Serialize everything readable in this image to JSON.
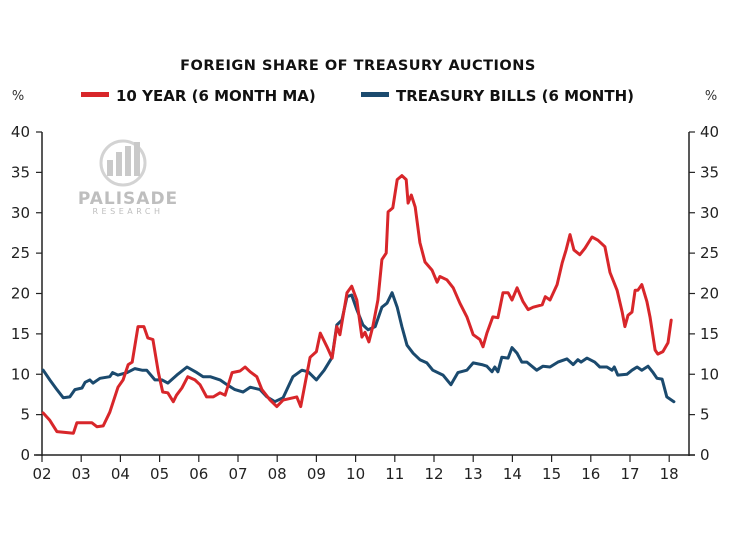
{
  "chart_data": {
    "type": "line",
    "title": "FOREIGN SHARE OF TREASURY AUCTIONS",
    "ylabel_left": "%",
    "ylabel_right": "%",
    "watermark": {
      "name": "PALISADE",
      "sub": "RESEARCH"
    },
    "xlim": [
      2002,
      2018.5
    ],
    "ylim": [
      0,
      40
    ],
    "yticks": [
      0,
      5,
      10,
      15,
      20,
      25,
      30,
      35,
      40
    ],
    "xticks": [
      {
        "value": 2002,
        "label": "02"
      },
      {
        "value": 2003,
        "label": "03"
      },
      {
        "value": 2004,
        "label": "04"
      },
      {
        "value": 2005,
        "label": "05"
      },
      {
        "value": 2006,
        "label": "06"
      },
      {
        "value": 2007,
        "label": "07"
      },
      {
        "value": 2008,
        "label": "08"
      },
      {
        "value": 2009,
        "label": "09"
      },
      {
        "value": 2010,
        "label": "10"
      },
      {
        "value": 2011,
        "label": "11"
      },
      {
        "value": 2012,
        "label": "12"
      },
      {
        "value": 2013,
        "label": "13"
      },
      {
        "value": 2014,
        "label": "14"
      },
      {
        "value": 2015,
        "label": "15"
      },
      {
        "value": 2016,
        "label": "16"
      },
      {
        "value": 2017,
        "label": "17"
      },
      {
        "value": 2018,
        "label": "18"
      }
    ],
    "grid": false,
    "legend_position": "top",
    "series": [
      {
        "name": "10 YEAR (6 MONTH MA)",
        "color": "#d8262a",
        "points": [
          [
            2002.03,
            5.2
          ],
          [
            2002.2,
            4.3
          ],
          [
            2002.38,
            2.9
          ],
          [
            2002.58,
            2.8
          ],
          [
            2002.8,
            2.7
          ],
          [
            2002.89,
            4.0
          ],
          [
            2003.27,
            4.0
          ],
          [
            2003.4,
            3.5
          ],
          [
            2003.56,
            3.6
          ],
          [
            2003.73,
            5.3
          ],
          [
            2003.94,
            8.4
          ],
          [
            2004.07,
            9.3
          ],
          [
            2004.2,
            11.2
          ],
          [
            2004.3,
            11.5
          ],
          [
            2004.45,
            15.9
          ],
          [
            2004.6,
            15.9
          ],
          [
            2004.7,
            14.5
          ],
          [
            2004.83,
            14.3
          ],
          [
            2004.97,
            10.2
          ],
          [
            2005.08,
            7.8
          ],
          [
            2005.21,
            7.7
          ],
          [
            2005.35,
            6.6
          ],
          [
            2005.43,
            7.4
          ],
          [
            2005.57,
            8.3
          ],
          [
            2005.72,
            9.7
          ],
          [
            2005.9,
            9.3
          ],
          [
            2006.03,
            8.7
          ],
          [
            2006.2,
            7.2
          ],
          [
            2006.37,
            7.2
          ],
          [
            2006.54,
            7.7
          ],
          [
            2006.67,
            7.4
          ],
          [
            2006.85,
            10.2
          ],
          [
            2007.05,
            10.4
          ],
          [
            2007.18,
            10.9
          ],
          [
            2007.31,
            10.3
          ],
          [
            2007.48,
            9.7
          ],
          [
            2007.61,
            8.1
          ],
          [
            2007.82,
            6.8
          ],
          [
            2007.99,
            6.0
          ],
          [
            2008.15,
            6.8
          ],
          [
            2008.5,
            7.2
          ],
          [
            2008.6,
            6.0
          ],
          [
            2008.84,
            12.1
          ],
          [
            2009.0,
            12.8
          ],
          [
            2009.1,
            15.1
          ],
          [
            2009.27,
            13.4
          ],
          [
            2009.4,
            12.0
          ],
          [
            2009.52,
            15.9
          ],
          [
            2009.6,
            14.9
          ],
          [
            2009.78,
            20.1
          ],
          [
            2009.9,
            20.9
          ],
          [
            2010.03,
            19.2
          ],
          [
            2010.16,
            14.6
          ],
          [
            2010.24,
            15.2
          ],
          [
            2010.34,
            14.0
          ],
          [
            2010.44,
            15.9
          ],
          [
            2010.57,
            19.2
          ],
          [
            2010.67,
            24.2
          ],
          [
            2010.78,
            25.0
          ],
          [
            2010.83,
            30.1
          ],
          [
            2010.95,
            30.6
          ],
          [
            2011.06,
            34.1
          ],
          [
            2011.18,
            34.6
          ],
          [
            2011.29,
            34.1
          ],
          [
            2011.34,
            31.2
          ],
          [
            2011.42,
            32.2
          ],
          [
            2011.52,
            30.7
          ],
          [
            2011.64,
            26.3
          ],
          [
            2011.77,
            23.9
          ],
          [
            2011.95,
            22.9
          ],
          [
            2012.08,
            21.4
          ],
          [
            2012.15,
            22.1
          ],
          [
            2012.33,
            21.7
          ],
          [
            2012.49,
            20.7
          ],
          [
            2012.66,
            18.8
          ],
          [
            2012.84,
            17.1
          ],
          [
            2013.0,
            14.9
          ],
          [
            2013.17,
            14.3
          ],
          [
            2013.25,
            13.4
          ],
          [
            2013.35,
            15.1
          ],
          [
            2013.5,
            17.1
          ],
          [
            2013.63,
            17.0
          ],
          [
            2013.76,
            20.1
          ],
          [
            2013.89,
            20.1
          ],
          [
            2013.99,
            19.2
          ],
          [
            2014.12,
            20.7
          ],
          [
            2014.27,
            19.0
          ],
          [
            2014.4,
            18.0
          ],
          [
            2014.53,
            18.3
          ],
          [
            2014.76,
            18.6
          ],
          [
            2014.84,
            19.6
          ],
          [
            2014.96,
            19.2
          ],
          [
            2015.14,
            21.1
          ],
          [
            2015.27,
            23.8
          ],
          [
            2015.37,
            25.4
          ],
          [
            2015.47,
            27.3
          ],
          [
            2015.57,
            25.4
          ],
          [
            2015.72,
            24.8
          ],
          [
            2015.85,
            25.6
          ],
          [
            2016.03,
            27.0
          ],
          [
            2016.18,
            26.6
          ],
          [
            2016.36,
            25.8
          ],
          [
            2016.49,
            22.6
          ],
          [
            2016.67,
            20.4
          ],
          [
            2016.8,
            17.7
          ],
          [
            2016.87,
            15.9
          ],
          [
            2016.95,
            17.3
          ],
          [
            2017.05,
            17.7
          ],
          [
            2017.13,
            20.4
          ],
          [
            2017.2,
            20.4
          ],
          [
            2017.3,
            21.1
          ],
          [
            2017.43,
            19.0
          ],
          [
            2017.51,
            17.1
          ],
          [
            2017.56,
            15.5
          ],
          [
            2017.64,
            13.0
          ],
          [
            2017.71,
            12.5
          ],
          [
            2017.84,
            12.8
          ],
          [
            2017.97,
            13.9
          ],
          [
            2018.05,
            16.7
          ]
        ]
      },
      {
        "name": "TREASURY BILLS (6 MONTH)",
        "color": "#1b4a6e",
        "points": [
          [
            2002.03,
            10.5
          ],
          [
            2002.2,
            9.3
          ],
          [
            2002.38,
            8.1
          ],
          [
            2002.54,
            7.1
          ],
          [
            2002.71,
            7.2
          ],
          [
            2002.84,
            8.1
          ],
          [
            2003.02,
            8.3
          ],
          [
            2003.1,
            9.0
          ],
          [
            2003.22,
            9.3
          ],
          [
            2003.3,
            8.9
          ],
          [
            2003.48,
            9.5
          ],
          [
            2003.73,
            9.7
          ],
          [
            2003.8,
            10.2
          ],
          [
            2003.94,
            9.9
          ],
          [
            2004.17,
            10.2
          ],
          [
            2004.37,
            10.7
          ],
          [
            2004.55,
            10.5
          ],
          [
            2004.67,
            10.5
          ],
          [
            2004.88,
            9.3
          ],
          [
            2005.06,
            9.3
          ],
          [
            2005.21,
            8.9
          ],
          [
            2005.44,
            9.9
          ],
          [
            2005.7,
            10.9
          ],
          [
            2005.95,
            10.2
          ],
          [
            2006.11,
            9.7
          ],
          [
            2006.29,
            9.7
          ],
          [
            2006.54,
            9.3
          ],
          [
            2006.72,
            8.7
          ],
          [
            2006.92,
            8.1
          ],
          [
            2007.13,
            7.8
          ],
          [
            2007.31,
            8.4
          ],
          [
            2007.56,
            8.1
          ],
          [
            2007.74,
            7.2
          ],
          [
            2007.94,
            6.6
          ],
          [
            2008.15,
            7.1
          ],
          [
            2008.4,
            9.7
          ],
          [
            2008.63,
            10.5
          ],
          [
            2008.79,
            10.3
          ],
          [
            2009.0,
            9.3
          ],
          [
            2009.2,
            10.5
          ],
          [
            2009.4,
            12.1
          ],
          [
            2009.52,
            16.1
          ],
          [
            2009.65,
            16.7
          ],
          [
            2009.78,
            19.6
          ],
          [
            2009.9,
            19.8
          ],
          [
            2010.03,
            18.0
          ],
          [
            2010.19,
            16.1
          ],
          [
            2010.32,
            15.5
          ],
          [
            2010.5,
            15.9
          ],
          [
            2010.67,
            18.3
          ],
          [
            2010.8,
            18.8
          ],
          [
            2010.93,
            20.1
          ],
          [
            2011.06,
            18.3
          ],
          [
            2011.18,
            15.9
          ],
          [
            2011.31,
            13.6
          ],
          [
            2011.47,
            12.6
          ],
          [
            2011.64,
            11.8
          ],
          [
            2011.82,
            11.4
          ],
          [
            2011.97,
            10.5
          ],
          [
            2012.23,
            9.9
          ],
          [
            2012.43,
            8.7
          ],
          [
            2012.61,
            10.2
          ],
          [
            2012.84,
            10.5
          ],
          [
            2013.0,
            11.4
          ],
          [
            2013.22,
            11.2
          ],
          [
            2013.35,
            11.0
          ],
          [
            2013.48,
            10.3
          ],
          [
            2013.55,
            10.9
          ],
          [
            2013.63,
            10.3
          ],
          [
            2013.73,
            12.1
          ],
          [
            2013.89,
            12.0
          ],
          [
            2013.99,
            13.3
          ],
          [
            2014.12,
            12.6
          ],
          [
            2014.24,
            11.5
          ],
          [
            2014.37,
            11.5
          ],
          [
            2014.62,
            10.5
          ],
          [
            2014.78,
            11.0
          ],
          [
            2014.96,
            10.9
          ],
          [
            2015.16,
            11.5
          ],
          [
            2015.39,
            11.9
          ],
          [
            2015.55,
            11.2
          ],
          [
            2015.67,
            11.8
          ],
          [
            2015.75,
            11.5
          ],
          [
            2015.9,
            12.0
          ],
          [
            2016.1,
            11.5
          ],
          [
            2016.23,
            10.9
          ],
          [
            2016.41,
            10.9
          ],
          [
            2016.54,
            10.5
          ],
          [
            2016.6,
            10.9
          ],
          [
            2016.69,
            9.9
          ],
          [
            2016.92,
            10.0
          ],
          [
            2017.05,
            10.5
          ],
          [
            2017.18,
            10.9
          ],
          [
            2017.3,
            10.5
          ],
          [
            2017.46,
            11.0
          ],
          [
            2017.59,
            10.2
          ],
          [
            2017.69,
            9.5
          ],
          [
            2017.82,
            9.4
          ],
          [
            2017.94,
            7.2
          ],
          [
            2018.12,
            6.6
          ]
        ]
      }
    ]
  }
}
